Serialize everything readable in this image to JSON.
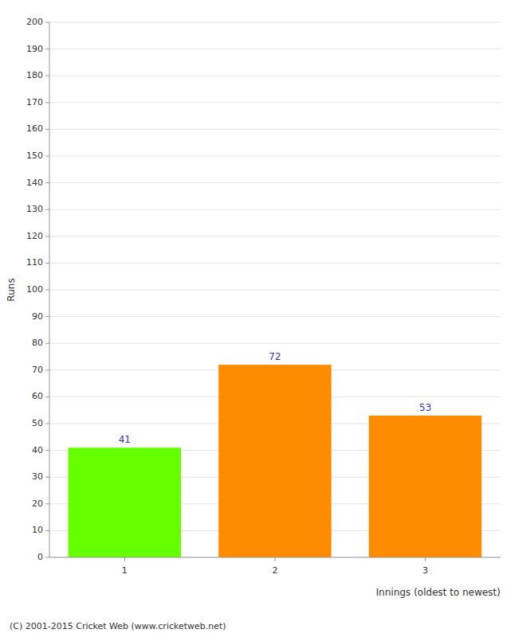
{
  "chart_data": {
    "type": "bar",
    "categories": [
      "1",
      "2",
      "3"
    ],
    "values": [
      41,
      72,
      53
    ],
    "colors": [
      "#66ff00",
      "#ff8c00",
      "#ff8c00"
    ],
    "ylabel": "Runs",
    "xlabel": "Innings (oldest to newest)",
    "ylim": [
      0,
      200
    ],
    "yticks": [
      0,
      10,
      20,
      30,
      40,
      50,
      60,
      70,
      80,
      90,
      100,
      110,
      120,
      130,
      140,
      150,
      160,
      170,
      180,
      190,
      200
    ],
    "grid": true,
    "data_labels": true,
    "annotations": [
      "(C) 2001-2015 Cricket Web (www.cricketweb.net)"
    ]
  }
}
